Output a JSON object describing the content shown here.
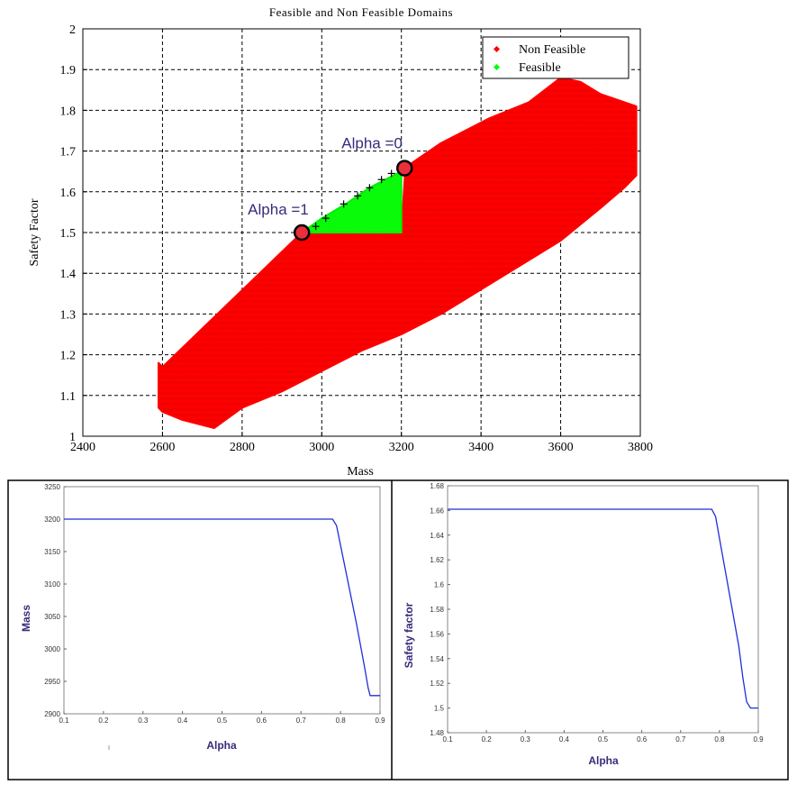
{
  "chart_data": [
    {
      "type": "scatter",
      "title": "Feasible and Non Feasible Domains",
      "xlabel": "Mass",
      "ylabel": "Safety Factor",
      "xlim": [
        2400,
        3800
      ],
      "ylim": [
        1,
        2
      ],
      "xticks": [
        2400,
        2600,
        2800,
        3000,
        3200,
        3400,
        3600,
        3800
      ],
      "yticks": [
        1,
        1.1,
        1.2,
        1.3,
        1.4,
        1.5,
        1.6,
        1.7,
        1.8,
        1.9,
        2
      ],
      "grid": true,
      "legend_position": "top-right",
      "colors": {
        "non_feasible": "#ff0000",
        "feasible": "#00ff00",
        "marker_point": "#e8303a",
        "annotation": "#3a2a7a"
      },
      "series": [
        {
          "name": "Non Feasible",
          "region_outline": [
            [
              2590,
              1.18
            ],
            [
              2600,
              1.17
            ],
            [
              2950,
              1.5
            ],
            [
              3000,
              1.5
            ],
            [
              3200,
              1.5
            ],
            [
              3210,
              1.66
            ],
            [
              3300,
              1.72
            ],
            [
              3420,
              1.78
            ],
            [
              3520,
              1.82
            ],
            [
              3600,
              1.88
            ],
            [
              3650,
              1.87
            ],
            [
              3700,
              1.84
            ],
            [
              3790,
              1.81
            ],
            [
              3790,
              1.64
            ],
            [
              3760,
              1.61
            ],
            [
              3700,
              1.56
            ],
            [
              3600,
              1.48
            ],
            [
              3500,
              1.42
            ],
            [
              3400,
              1.36
            ],
            [
              3300,
              1.3
            ],
            [
              3200,
              1.25
            ],
            [
              3100,
              1.21
            ],
            [
              3000,
              1.16
            ],
            [
              2900,
              1.11
            ],
            [
              2800,
              1.07
            ],
            [
              2730,
              1.02
            ],
            [
              2650,
              1.04
            ],
            [
              2600,
              1.06
            ],
            [
              2590,
              1.07
            ]
          ]
        },
        {
          "name": "Feasible",
          "region_outline": [
            [
              2950,
              1.5
            ],
            [
              3000,
              1.535
            ],
            [
              3060,
              1.57
            ],
            [
              3120,
              1.61
            ],
            [
              3200,
              1.65
            ],
            [
              3200,
              1.5
            ]
          ]
        }
      ],
      "pareto_front": {
        "x": [
          2985,
          3010,
          3055,
          3090,
          3120,
          3150,
          3175
        ],
        "y": [
          1.515,
          1.535,
          1.57,
          1.59,
          1.61,
          1.63,
          1.645
        ]
      },
      "highlighted_points": [
        {
          "label": "Alpha =1",
          "x": 2950,
          "y": 1.5
        },
        {
          "label": "Alpha =0",
          "x": 3208,
          "y": 1.658
        }
      ]
    },
    {
      "type": "line",
      "xlabel": "Alpha",
      "ylabel": "Mass",
      "xlim": [
        0.1,
        0.9
      ],
      "ylim": [
        2900,
        3250
      ],
      "xticks": [
        0.1,
        0.2,
        0.3,
        0.4,
        0.5,
        0.6,
        0.7,
        0.8,
        0.9
      ],
      "yticks": [
        2900,
        2950,
        3000,
        3050,
        3100,
        3150,
        3200,
        3250
      ],
      "series": [
        {
          "x": [
            0.1,
            0.7,
            0.78,
            0.79,
            0.8,
            0.82,
            0.84,
            0.86,
            0.87,
            0.875,
            0.9
          ],
          "y": [
            3200,
            3200,
            3200,
            3190,
            3160,
            3100,
            3040,
            2975,
            2940,
            2928,
            2928
          ]
        }
      ]
    },
    {
      "type": "line",
      "xlabel": "Alpha",
      "ylabel": "Safety factor",
      "xlim": [
        0.1,
        0.9
      ],
      "ylim": [
        1.48,
        1.68
      ],
      "xticks": [
        0.1,
        0.2,
        0.3,
        0.4,
        0.5,
        0.6,
        0.7,
        0.8,
        0.9
      ],
      "yticks": [
        1.48,
        1.5,
        1.52,
        1.54,
        1.56,
        1.58,
        1.6,
        1.62,
        1.64,
        1.66,
        1.68
      ],
      "series": [
        {
          "x": [
            0.1,
            0.7,
            0.78,
            0.79,
            0.81,
            0.83,
            0.85,
            0.86,
            0.87,
            0.88,
            0.9
          ],
          "y": [
            1.661,
            1.661,
            1.661,
            1.655,
            1.62,
            1.585,
            1.55,
            1.525,
            1.505,
            1.5,
            1.5
          ]
        }
      ]
    }
  ]
}
